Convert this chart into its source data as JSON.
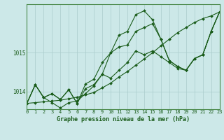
{
  "background_color": "#cce8e8",
  "plot_bg_color": "#cce8e8",
  "grid_color": "#aacccc",
  "line_color": "#1a5c1a",
  "title": "Graphe pression niveau de la mer (hPa)",
  "xlim": [
    0,
    23
  ],
  "ylim": [
    1013.55,
    1016.25
  ],
  "yticks": [
    1014,
    1015
  ],
  "xticks": [
    0,
    1,
    2,
    3,
    4,
    5,
    6,
    7,
    8,
    9,
    10,
    11,
    12,
    13,
    14,
    15,
    16,
    17,
    18,
    19,
    20,
    21,
    22,
    23
  ],
  "series": [
    [
      1013.7,
      1013.72,
      1013.74,
      1013.76,
      1013.78,
      1013.82,
      1013.86,
      1013.92,
      1013.98,
      1014.1,
      1014.22,
      1014.38,
      1014.52,
      1014.68,
      1014.84,
      1015.0,
      1015.18,
      1015.35,
      1015.52,
      1015.65,
      1015.78,
      1015.88,
      1015.95,
      1016.05
    ],
    [
      1013.7,
      1014.18,
      1013.85,
      1013.95,
      1013.8,
      1014.05,
      1013.7,
      1014.08,
      1014.18,
      1014.45,
      1015.0,
      1015.15,
      1015.2,
      1015.55,
      1015.65,
      1015.75,
      1015.35,
      1014.8,
      1014.65,
      1014.55,
      1014.85,
      1014.95,
      1015.55,
      1016.05
    ],
    [
      1013.7,
      1014.18,
      1013.85,
      1013.95,
      1013.8,
      1014.05,
      1013.7,
      1014.2,
      1014.32,
      1014.75,
      1015.0,
      1015.45,
      1015.55,
      1015.98,
      1016.08,
      1015.85,
      1015.35,
      1014.8,
      1014.65,
      1014.55,
      1014.85,
      1014.95,
      1015.55,
      1016.05
    ],
    [
      1013.7,
      1014.18,
      1013.85,
      1013.72,
      1013.58,
      1013.72,
      1013.76,
      1013.95,
      1014.15,
      1014.45,
      1014.35,
      1014.55,
      1014.75,
      1015.05,
      1014.95,
      1015.05,
      1014.9,
      1014.75,
      1014.6,
      1014.55,
      1014.85,
      1014.95,
      1015.55,
      1016.05
    ]
  ],
  "marker": "D",
  "markersize": 2.0,
  "linewidth": 0.8,
  "title_fontsize": 6.0,
  "tick_fontsize": 5.0,
  "spine_color": "#4a8a4a"
}
